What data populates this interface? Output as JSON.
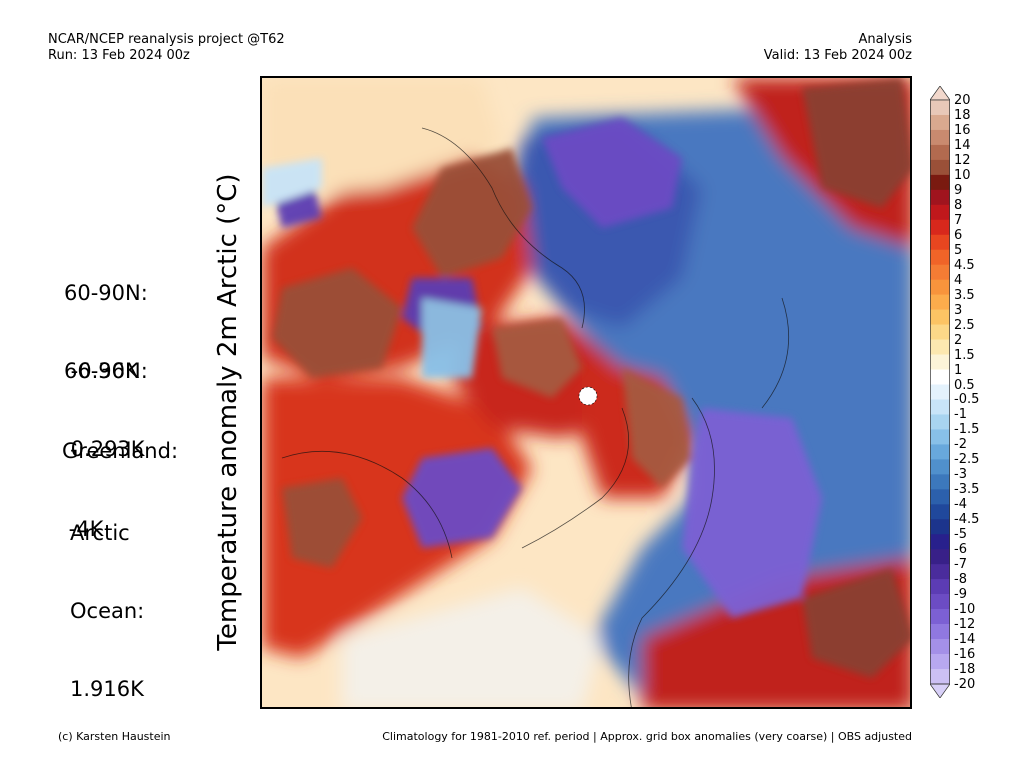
{
  "header": {
    "left_line1": "NCAR/NCEP reanalysis project @T62",
    "left_line2": "Run: 13 Feb 2024 00z",
    "right_line1": "Analysis",
    "right_line2": "Valid: 13 Feb 2024 00z"
  },
  "axis_label": "Temperature anomaly 2m Arctic (°C)",
  "stats": {
    "s1_label": "60-90N:",
    "s1_value": " -0.36K",
    "s2_label": "66-90N:",
    "s2_value": " 0.293K",
    "s3_label": "Greenland:",
    "s3_value": " -4K",
    "s4_label1": "Arctic",
    "s4_label2": "Ocean:",
    "s4_value": "1.916K"
  },
  "colorbar": {
    "labels": [
      "20",
      "18",
      "16",
      "14",
      "12",
      "10",
      "9",
      "8",
      "7",
      "6",
      "5",
      "4.5",
      "4",
      "3.5",
      "3",
      "2.5",
      "2",
      "1.5",
      "1",
      "0.5",
      "-0.5",
      "-1",
      "-1.5",
      "-2",
      "-2.5",
      "-3",
      "-3.5",
      "-4",
      "-4.5",
      "-5",
      "-6",
      "-7",
      "-8",
      "-9",
      "-10",
      "-12",
      "-14",
      "-16",
      "-18",
      "-20"
    ],
    "colors": [
      "#e8c8b8",
      "#d9a98f",
      "#c98a6f",
      "#b26a4f",
      "#9a5038",
      "#7a1a10",
      "#a0141e",
      "#c0181c",
      "#d8281c",
      "#e84620",
      "#f06428",
      "#f47c34",
      "#f8943c",
      "#fcac4c",
      "#fcc464",
      "#fcd888",
      "#fce8b0",
      "#fcf4d8",
      "#ffffff",
      "#e4f2fc",
      "#c8e4f8",
      "#a8d4f0",
      "#88c0e8",
      "#68a8dc",
      "#5090cc",
      "#3c78bc",
      "#2c60ac",
      "#20489c",
      "#1c348c",
      "#28208c",
      "#382088",
      "#4a2c9c",
      "#5c3cb4",
      "#6c4cc4",
      "#7c60d4",
      "#9078e0",
      "#a490e8",
      "#b8a8f0",
      "#ccc0f4"
    ]
  },
  "footer": {
    "left": "(c) Karsten Haustein",
    "right": "Climatology for 1981-2010 ref. period | Approx. grid box anomalies (very coarse) | OBS adjusted"
  }
}
